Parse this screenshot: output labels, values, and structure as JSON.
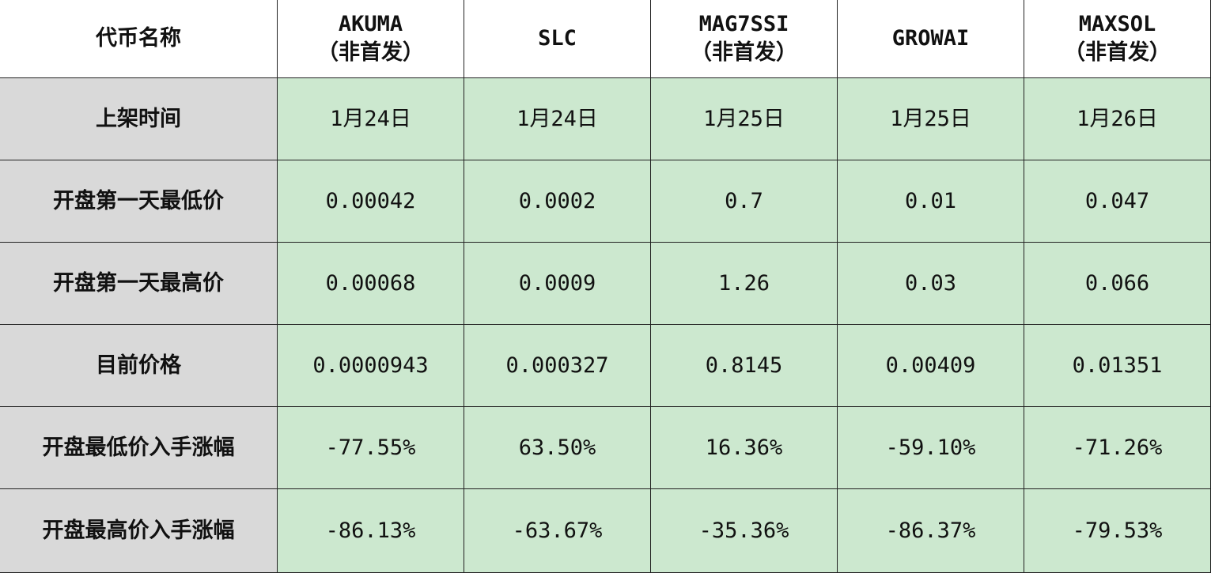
{
  "table": {
    "corner": "代币名称",
    "headers": [
      [
        "AKUMA",
        "（非首发）"
      ],
      [
        "SLC"
      ],
      [
        "MAG7SSI",
        "（非首发）"
      ],
      [
        "GROWAI"
      ],
      [
        "MAXSOL",
        "（非首发）"
      ]
    ],
    "rows": [
      {
        "label": "上架时间",
        "cells": [
          "1月24日",
          "1月24日",
          "1月25日",
          "1月25日",
          "1月26日"
        ]
      },
      {
        "label": "开盘第一天最低价",
        "cells": [
          "0.00042",
          "0.0002",
          "0.7",
          "0.01",
          "0.047"
        ]
      },
      {
        "label": "开盘第一天最高价",
        "cells": [
          "0.00068",
          "0.0009",
          "1.26",
          "0.03",
          "0.066"
        ]
      },
      {
        "label": "目前价格",
        "cells": [
          "0.0000943",
          "0.000327",
          "0.8145",
          "0.00409",
          "0.01351"
        ]
      },
      {
        "label": "开盘最低价入手涨幅",
        "cells": [
          "-77.55%",
          "63.50%",
          "16.36%",
          "-59.10%",
          "-71.26%"
        ]
      },
      {
        "label": "开盘最高价入手涨幅",
        "cells": [
          "-86.13%",
          "-63.67%",
          "-35.36%",
          "-86.37%",
          "-79.53%"
        ]
      }
    ]
  }
}
